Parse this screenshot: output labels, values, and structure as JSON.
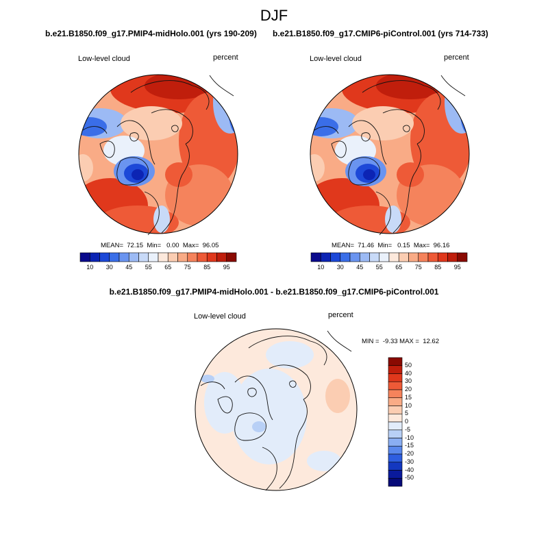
{
  "figure": {
    "season": "DJF",
    "diff_title": "b.e21.B1850.f09_g17.PMIP4-midHolo.001 - b.e21.B1850.f09_g17.CMIP6-piControl.001"
  },
  "panels": [
    {
      "case_title": "b.e21.B1850.f09_g17.PMIP4-midHolo.001 (yrs 190-209)",
      "variable": "Low-level cloud",
      "units": "percent",
      "stats": "MEAN=  72.15  Min=   0.00  Max=  96.05"
    },
    {
      "case_title": "b.e21.B1850.f09_g17.CMIP6-piControl.001 (yrs 714-733)",
      "variable": "Low-level cloud",
      "units": "percent",
      "stats": "MEAN=  71.46  Min=   0.15  Max=  96.16"
    },
    {
      "variable": "Low-level cloud",
      "units": "percent",
      "stats": "MIN =  -9.33 MAX =  12.62"
    }
  ],
  "colorbar_top": {
    "tick_labels": [
      "10",
      "30",
      "45",
      "55",
      "65",
      "75",
      "85",
      "95"
    ],
    "colors": [
      "#0a0a8c",
      "#0c24b4",
      "#1c48d8",
      "#3a6ee8",
      "#6a94f0",
      "#9cbaf4",
      "#c8daf8",
      "#eaf1fb",
      "#fde9dc",
      "#fbcdb2",
      "#f9ab86",
      "#f5835c",
      "#ee5a37",
      "#e0381c",
      "#c01e0c",
      "#8a0a02"
    ]
  },
  "colorbar_diff": {
    "tick_labels": [
      "50",
      "40",
      "30",
      "20",
      "15",
      "10",
      "5",
      "0",
      "-5",
      "-10",
      "-15",
      "-20",
      "-30",
      "-40",
      "-50"
    ],
    "colors": [
      "#8a0a02",
      "#c01e0c",
      "#e0381c",
      "#ee5a37",
      "#f5835c",
      "#f9ab86",
      "#fbcdb2",
      "#fde9dc",
      "#e2ecfa",
      "#b8d0f6",
      "#8aaef2",
      "#5a88ec",
      "#2e5ee0",
      "#1438c0",
      "#0a1a9c",
      "#060a78"
    ]
  }
}
